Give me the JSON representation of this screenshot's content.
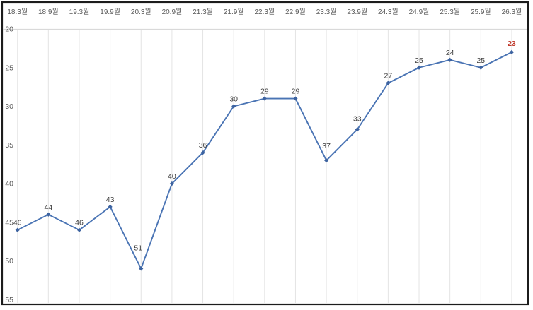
{
  "chart_data": {
    "type": "line",
    "title": "",
    "xlabel": "",
    "ylabel": "",
    "categories": [
      "18.3월",
      "18.9월",
      "19.3월",
      "19.9월",
      "20.3월",
      "20.9월",
      "21.3월",
      "21.9월",
      "22.3월",
      "22.9월",
      "23.3월",
      "23.9월",
      "24.3월",
      "24.9월",
      "25.3월",
      "25.9월",
      "26.3월"
    ],
    "values": [
      46,
      44,
      46,
      43,
      51,
      40,
      36,
      30,
      29,
      29,
      37,
      33,
      27,
      25,
      24,
      25,
      23
    ],
    "y_ticks": [
      20,
      25,
      30,
      35,
      40,
      45,
      50,
      55
    ],
    "ylim": [
      20,
      55
    ],
    "y_axis_reversed": true,
    "x_axis_position": "top",
    "grid": "vertical-only",
    "legend": "none",
    "data_labels": "above-points",
    "highlight": {
      "index": 16,
      "value": 23,
      "color": "#c0392b",
      "bold": true
    },
    "colors": {
      "line": "#4a74b4",
      "marker": "#3d63a0",
      "data_label": "#3d3d3d",
      "axis_label": "#595959",
      "gridline": "#e4e4e4",
      "axis_line": "#d9d9d9",
      "frame_border": "#1c1c1c",
      "background": "#ffffff"
    }
  }
}
